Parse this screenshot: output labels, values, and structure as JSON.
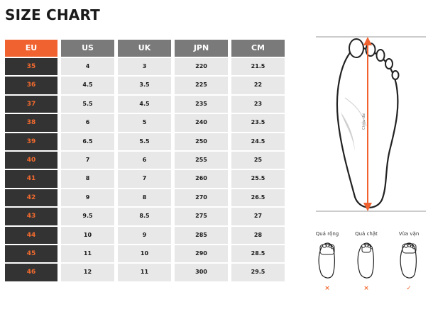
{
  "title": "SIZE CHART",
  "colors": {
    "accent": "#f0622f",
    "header_gray": "#7a7a7a",
    "eu_cell_bg": "#333333",
    "cell_bg": "#e8e8e8"
  },
  "table": {
    "headers": [
      "EU",
      "US",
      "UK",
      "JPN",
      "CM"
    ],
    "rows": [
      [
        "35",
        "4",
        "3",
        "220",
        "21.5"
      ],
      [
        "36",
        "4.5",
        "3.5",
        "225",
        "22"
      ],
      [
        "37",
        "5.5",
        "4.5",
        "235",
        "23"
      ],
      [
        "38",
        "6",
        "5",
        "240",
        "23.5"
      ],
      [
        "39",
        "6.5",
        "5.5",
        "250",
        "24.5"
      ],
      [
        "40",
        "7",
        "6",
        "255",
        "25"
      ],
      [
        "41",
        "8",
        "7",
        "260",
        "25.5"
      ],
      [
        "42",
        "9",
        "8",
        "270",
        "26.5"
      ],
      [
        "43",
        "9.5",
        "8.5",
        "275",
        "27"
      ],
      [
        "44",
        "10",
        "9",
        "285",
        "28"
      ],
      [
        "45",
        "11",
        "10",
        "290",
        "28.5"
      ],
      [
        "46",
        "12",
        "11",
        "300",
        "29.5"
      ]
    ]
  },
  "foot_diagram": {
    "length_label": "Chiều dài"
  },
  "fit_guide": [
    {
      "label": "Quá rộng",
      "mark": "×",
      "icon": "cross-icon"
    },
    {
      "label": "Quá chật",
      "mark": "×",
      "icon": "cross-icon"
    },
    {
      "label": "Vừa vặn",
      "mark": "✓",
      "icon": "check-icon"
    }
  ]
}
